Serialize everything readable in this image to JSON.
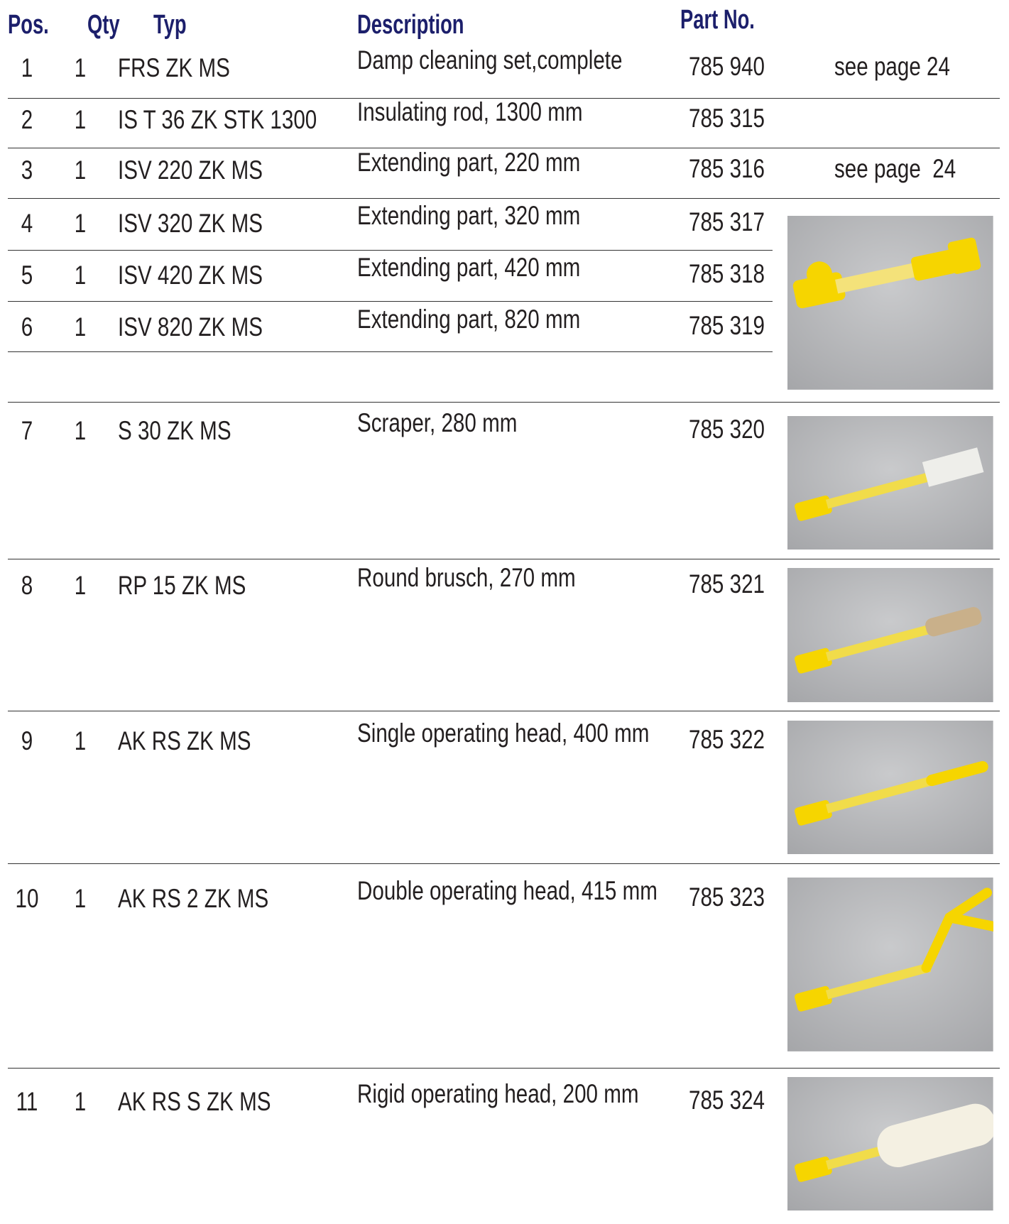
{
  "header": {
    "pos": "Pos.",
    "qty": "Qty",
    "typ": "Typ",
    "description": "Description",
    "part_no": "Part No."
  },
  "rows": [
    {
      "pos": "1",
      "qty": "1",
      "typ": "FRS ZK MS",
      "description": "Damp cleaning set,complete",
      "part_no": "785 940",
      "note": "see page 24"
    },
    {
      "pos": "2",
      "qty": "1",
      "typ": "IS T 36 ZK STK 1300",
      "description": "Insulating rod, 1300 mm",
      "part_no": "785 315"
    },
    {
      "pos": "3",
      "qty": "1",
      "typ": "ISV 220 ZK MS",
      "description": "Extending part, 220 mm",
      "part_no": "785 316",
      "note": "see page  24"
    },
    {
      "pos": "4",
      "qty": "1",
      "typ": "ISV 320 ZK MS",
      "description": "Extending part, 320 mm",
      "part_no": "785 317"
    },
    {
      "pos": "5",
      "qty": "1",
      "typ": "ISV 420 ZK MS",
      "description": "Extending part, 420 mm",
      "part_no": "785 318"
    },
    {
      "pos": "6",
      "qty": "1",
      "typ": "ISV 820 ZK MS",
      "description": "Extending part, 820 mm",
      "part_no": "785 319"
    },
    {
      "pos": "7",
      "qty": "1",
      "typ": "S 30 ZK MS",
      "description": "Scraper, 280 mm",
      "part_no": "785 320"
    },
    {
      "pos": "8",
      "qty": "1",
      "typ": "RP 15 ZK MS",
      "description": "Round brusch, 270 mm",
      "part_no": "785 321"
    },
    {
      "pos": "9",
      "qty": "1",
      "typ": "AK RS ZK MS",
      "description": "Single operating head, 400 mm",
      "part_no": "785 322"
    },
    {
      "pos": "10",
      "qty": "1",
      "typ": "AK RS 2 ZK MS",
      "description": "Double operating head, 415 mm",
      "part_no": "785 323"
    },
    {
      "pos": "11",
      "qty": "1",
      "typ": "AK RS S ZK MS",
      "description": "Rigid operating head, 200 mm",
      "part_no": "785 324"
    }
  ]
}
